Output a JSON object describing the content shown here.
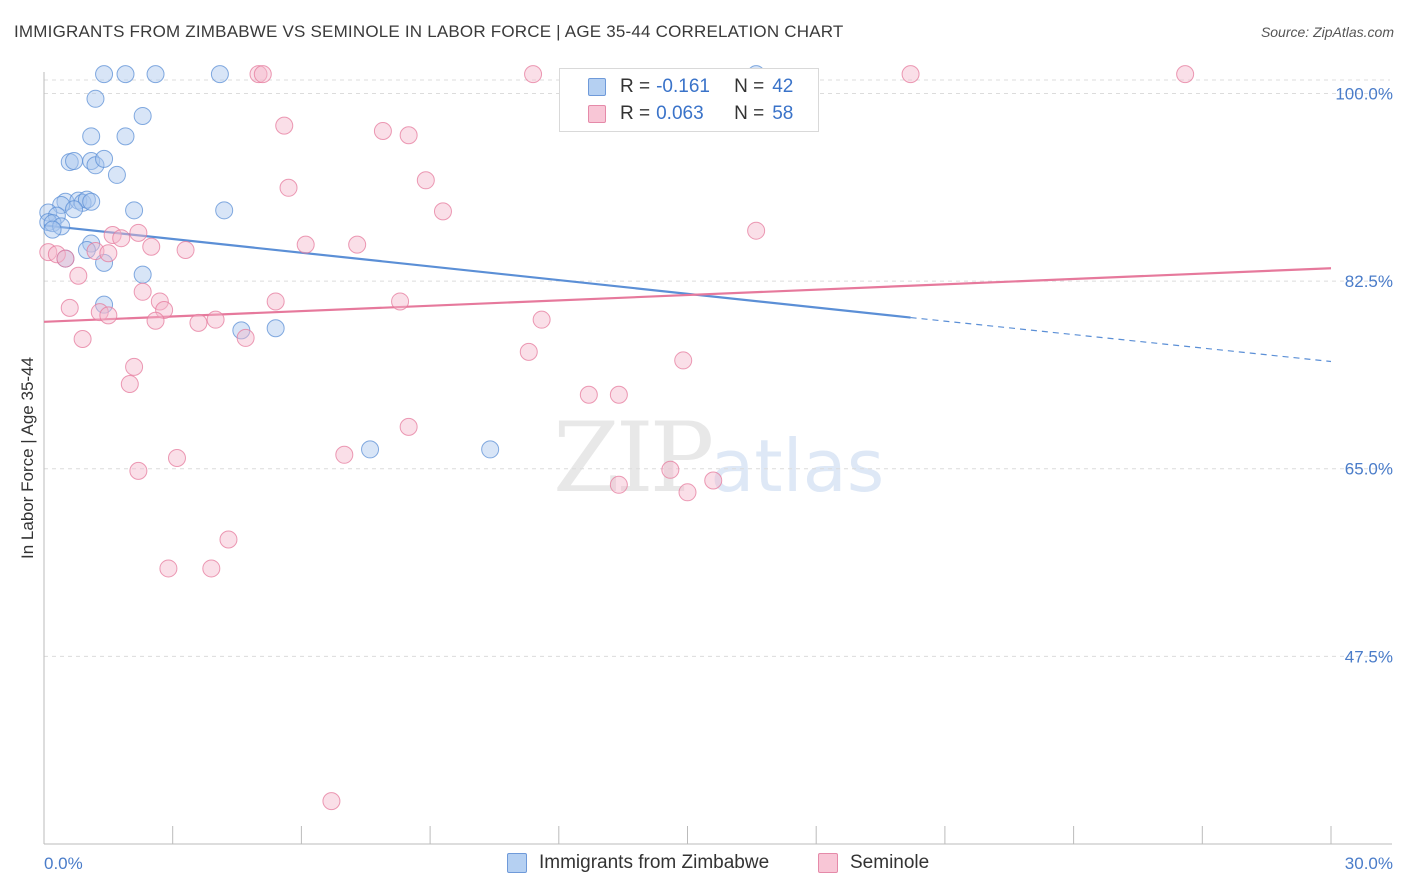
{
  "header": {
    "title": "IMMIGRANTS FROM ZIMBABWE VS SEMINOLE IN LABOR FORCE | AGE 35-44 CORRELATION CHART",
    "source": "Source: ZipAtlas.com"
  },
  "watermark": {
    "zip": "ZIP",
    "atlas": "atlas"
  },
  "legend_top": [
    {
      "r_label": "R =",
      "r_value": "-0.161",
      "n_label": "N =",
      "n_value": "42"
    },
    {
      "r_label": "R =",
      "r_value": "0.063",
      "n_label": "N =",
      "n_value": "58"
    }
  ],
  "legend_bottom": [
    {
      "label": "Immigrants from Zimbabwe"
    },
    {
      "label": "Seminole"
    }
  ],
  "chart_data": {
    "type": "scatter",
    "title": "IMMIGRANTS FROM ZIMBABWE VS SEMINOLE IN LABOR FORCE | AGE 35-44 CORRELATION CHART",
    "xlabel": "",
    "ylabel": "In Labor Force | Age 35-44",
    "xlim": [
      0,
      30
    ],
    "ylim": [
      30,
      102
    ],
    "x_ticks": [
      0,
      30
    ],
    "x_tick_labels": [
      "0.0%",
      "30.0%"
    ],
    "y_ticks": [
      47.5,
      65.0,
      82.5,
      100.0
    ],
    "y_tick_labels": [
      "47.5%",
      "65.0%",
      "82.5%",
      "100.0%"
    ],
    "grid": true,
    "legend_position": "top-center",
    "colors": {
      "Immigrants from Zimbabwe": "#5b8fd6",
      "Seminole": "#e6799c"
    },
    "series": [
      {
        "name": "Immigrants from Zimbabwe",
        "color": "#5b8fd6",
        "fill": "#a9c6ee",
        "trend": {
          "x0": 0.0,
          "y0": 87.7,
          "x1": 20.2,
          "y1": 79.1,
          "dash_x1": 30.0,
          "dash_y1": 75.0
        },
        "points": [
          [
            1.4,
            101.8
          ],
          [
            1.9,
            101.8
          ],
          [
            2.6,
            101.8
          ],
          [
            4.1,
            101.8
          ],
          [
            16.6,
            101.8
          ],
          [
            1.2,
            99.5
          ],
          [
            2.3,
            97.9
          ],
          [
            1.1,
            96.0
          ],
          [
            1.9,
            96.0
          ],
          [
            0.6,
            93.6
          ],
          [
            0.7,
            93.7
          ],
          [
            1.1,
            93.7
          ],
          [
            1.2,
            93.3
          ],
          [
            1.4,
            93.9
          ],
          [
            1.7,
            92.4
          ],
          [
            0.5,
            89.9
          ],
          [
            0.8,
            90.0
          ],
          [
            0.9,
            89.8
          ],
          [
            1.0,
            90.1
          ],
          [
            1.1,
            89.9
          ],
          [
            0.4,
            89.6
          ],
          [
            0.7,
            89.2
          ],
          [
            2.1,
            89.1
          ],
          [
            4.2,
            89.1
          ],
          [
            0.1,
            88.9
          ],
          [
            0.3,
            88.6
          ],
          [
            0.1,
            88.0
          ],
          [
            0.2,
            87.9
          ],
          [
            0.4,
            87.6
          ],
          [
            0.2,
            87.3
          ],
          [
            1.1,
            86.0
          ],
          [
            1.0,
            85.4
          ],
          [
            0.5,
            84.6
          ],
          [
            1.4,
            84.2
          ],
          [
            2.3,
            83.1
          ],
          [
            1.4,
            80.3
          ],
          [
            4.6,
            77.9
          ],
          [
            5.4,
            78.1
          ],
          [
            7.6,
            66.8
          ],
          [
            10.4,
            66.8
          ]
        ]
      },
      {
        "name": "Seminole",
        "color": "#e6799c",
        "fill": "#f4b7cb",
        "trend": {
          "x0": 0.0,
          "y0": 78.7,
          "x1": 30.0,
          "y1": 83.7
        },
        "points": [
          [
            5.0,
            101.8
          ],
          [
            5.1,
            101.8
          ],
          [
            11.4,
            101.8
          ],
          [
            20.2,
            101.8
          ],
          [
            26.6,
            101.8
          ],
          [
            5.6,
            97.0
          ],
          [
            7.9,
            96.5
          ],
          [
            8.5,
            96.1
          ],
          [
            5.7,
            91.2
          ],
          [
            8.9,
            91.9
          ],
          [
            9.3,
            89.0
          ],
          [
            2.2,
            87.0
          ],
          [
            1.6,
            86.8
          ],
          [
            1.8,
            86.5
          ],
          [
            16.6,
            87.2
          ],
          [
            6.1,
            85.9
          ],
          [
            7.3,
            85.9
          ],
          [
            2.5,
            85.7
          ],
          [
            3.3,
            85.4
          ],
          [
            0.1,
            85.2
          ],
          [
            0.3,
            85.0
          ],
          [
            0.5,
            84.6
          ],
          [
            1.2,
            85.3
          ],
          [
            1.5,
            85.1
          ],
          [
            0.8,
            83.0
          ],
          [
            2.3,
            81.5
          ],
          [
            2.7,
            80.6
          ],
          [
            2.8,
            79.8
          ],
          [
            5.4,
            80.6
          ],
          [
            8.3,
            80.6
          ],
          [
            0.6,
            80.0
          ],
          [
            1.3,
            79.6
          ],
          [
            1.5,
            79.3
          ],
          [
            2.6,
            78.8
          ],
          [
            3.6,
            78.6
          ],
          [
            4.0,
            78.9
          ],
          [
            11.6,
            78.9
          ],
          [
            4.7,
            77.2
          ],
          [
            0.9,
            77.1
          ],
          [
            11.3,
            75.9
          ],
          [
            14.9,
            75.1
          ],
          [
            2.1,
            74.5
          ],
          [
            2.0,
            72.9
          ],
          [
            12.7,
            71.9
          ],
          [
            13.4,
            71.9
          ],
          [
            8.5,
            68.9
          ],
          [
            3.1,
            66.0
          ],
          [
            7.0,
            66.3
          ],
          [
            2.2,
            64.8
          ],
          [
            14.6,
            64.9
          ],
          [
            13.4,
            63.5
          ],
          [
            15.6,
            63.9
          ],
          [
            15.0,
            62.8
          ],
          [
            4.3,
            58.4
          ],
          [
            2.9,
            55.7
          ],
          [
            3.9,
            55.7
          ],
          [
            6.7,
            34.0
          ]
        ]
      }
    ]
  }
}
